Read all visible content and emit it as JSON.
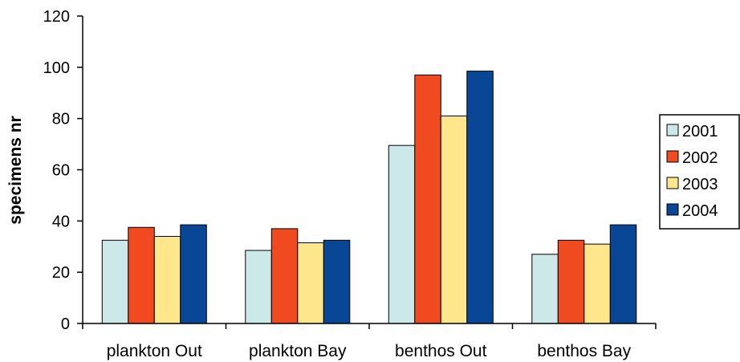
{
  "chart_data": {
    "type": "bar",
    "title": "",
    "xlabel": "",
    "ylabel": "specimens nr",
    "ylim": [
      0,
      120
    ],
    "yticks": [
      0,
      20,
      40,
      60,
      80,
      100,
      120
    ],
    "grid": false,
    "legend_position": "right",
    "categories": [
      "plankton Out",
      "plankton Bay",
      "benthos Out",
      "benthos Bay"
    ],
    "series": [
      {
        "name": "2001",
        "color": "#cde8e8",
        "values": [
          32.5,
          28.5,
          69.5,
          27
        ]
      },
      {
        "name": "2002",
        "color": "#f04a20",
        "values": [
          37.5,
          37,
          97,
          32.5
        ]
      },
      {
        "name": "2003",
        "color": "#fde68c",
        "values": [
          34,
          31.5,
          81,
          31
        ]
      },
      {
        "name": "2004",
        "color": "#0a4696",
        "values": [
          38.5,
          32.5,
          98.5,
          38.5
        ]
      }
    ]
  }
}
